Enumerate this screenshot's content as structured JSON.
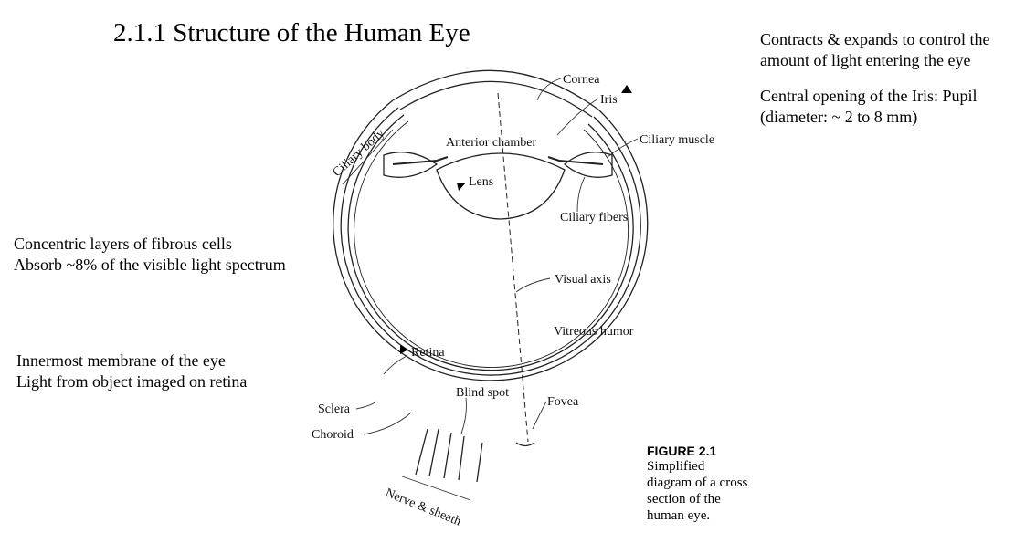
{
  "title": "2.1.1 Structure of the Human Eye",
  "notes": {
    "iris_1": "Contracts & expands to control the",
    "iris_2": "amount of light entering the eye",
    "pupil_1": "Central opening of the Iris: Pupil",
    "pupil_2": "(diameter: ~ 2 to 8 mm)",
    "lens_1": "Concentric layers of fibrous cells",
    "lens_2": "Absorb ~8% of the visible light spectrum",
    "retina_1": "Innermost membrane of the eye",
    "retina_2": "Light from object imaged on retina"
  },
  "labels": {
    "cornea": "Cornea",
    "iris": "Iris",
    "ciliary_muscle": "Ciliary muscle",
    "ciliary_body": "Ciliary body",
    "anterior_chamber": "Anterior chamber",
    "lens": "Lens",
    "ciliary_fibers": "Ciliary fibers",
    "visual_axis": "Visual axis",
    "vitreous_humor": "Vitreous humor",
    "retina": "Retina",
    "blind_spot": "Blind spot",
    "fovea": "Fovea",
    "sclera": "Sclera",
    "choroid": "Choroid",
    "nerve_sheath": "Nerve & sheath"
  },
  "figure": {
    "number": "FIGURE 2.1",
    "caption_1": "Simplified",
    "caption_2": "diagram of a cross",
    "caption_3": "section of the",
    "caption_4": "human eye."
  }
}
